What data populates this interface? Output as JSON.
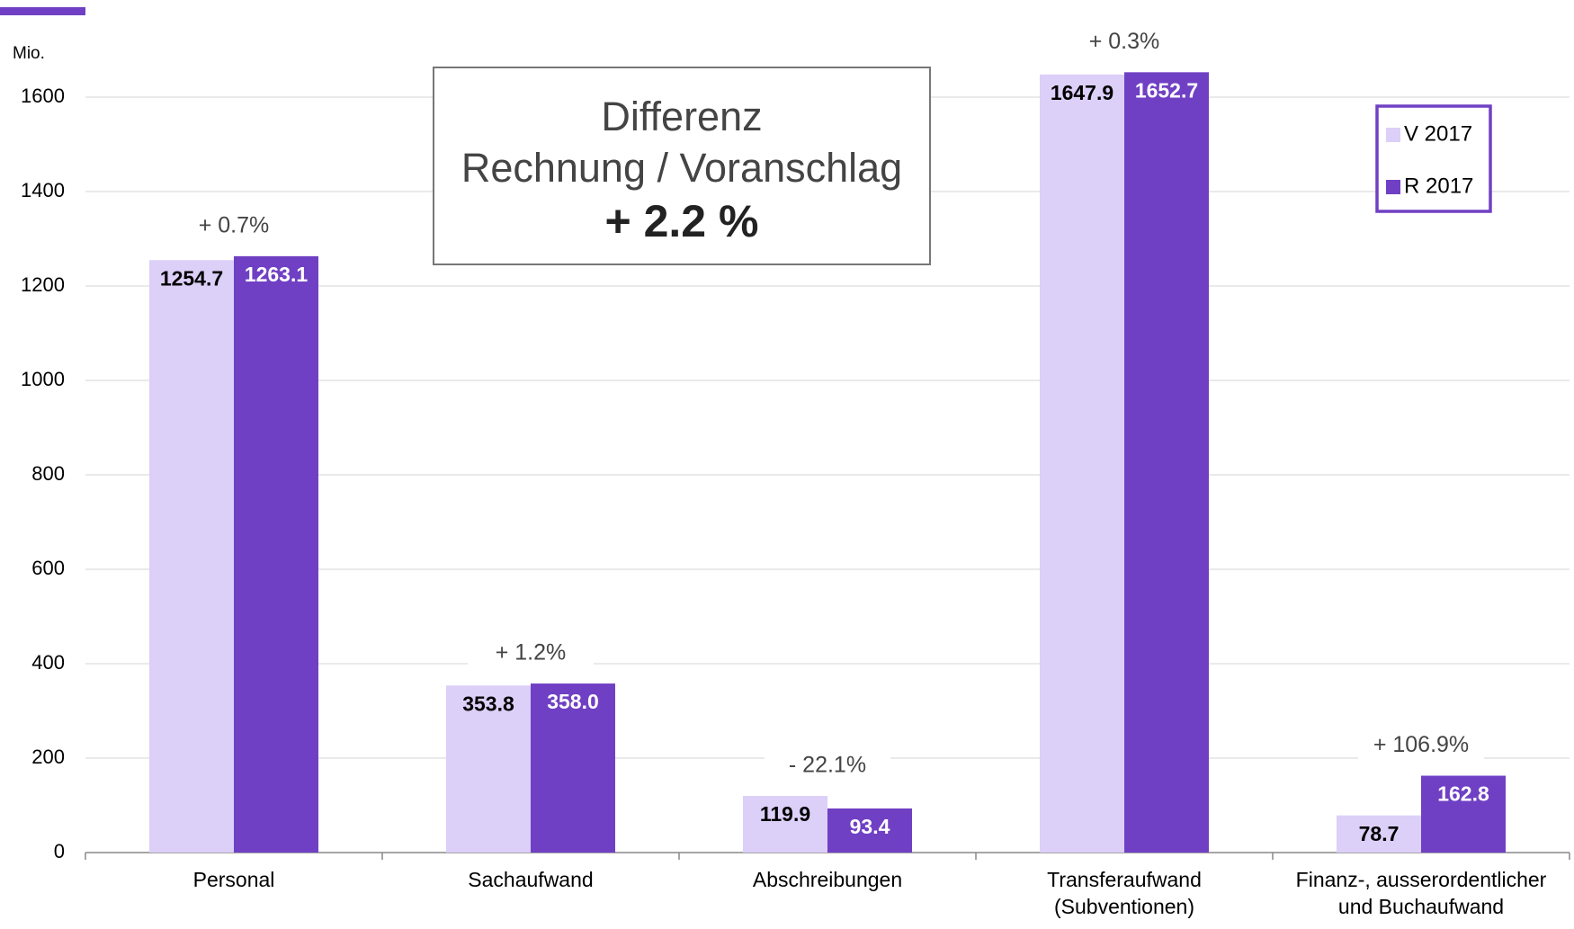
{
  "chart_data": {
    "type": "bar",
    "unit_label": "Mio.",
    "categories": [
      [
        "Personal"
      ],
      [
        "Sachaufwand"
      ],
      [
        "Abschreibungen"
      ],
      [
        "Transferaufwand",
        "(Subventionen)"
      ],
      [
        "Finanz-, ausserordentlicher",
        "und Buchaufwand"
      ]
    ],
    "series": [
      {
        "name": "V 2017",
        "color": "#dccff8",
        "values": [
          1254.7,
          353.8,
          119.9,
          1647.9,
          78.7
        ],
        "value_labels": [
          "1254.7",
          "353.8",
          "119.9",
          "1647.9",
          "78.7"
        ]
      },
      {
        "name": "R 2017",
        "color": "#7040c4",
        "values": [
          1263.1,
          358.0,
          93.4,
          1652.7,
          162.8
        ],
        "value_labels": [
          "1263.1",
          "358.0",
          "93.4",
          "1652.7",
          "162.8"
        ]
      }
    ],
    "annotations": [
      "+ 0.7%",
      "+ 1.2%",
      "- 22.1%",
      "+ 0.3%",
      "+ 106.9%"
    ],
    "summary_box": [
      "Differenz",
      "Rechnung / Voranschlag",
      "+ 2.2 %"
    ],
    "ylim": [
      0,
      1600
    ],
    "yticks": [
      0,
      200,
      400,
      600,
      800,
      1000,
      1200,
      1400,
      1600
    ],
    "grid": true,
    "legend": "top-right"
  }
}
